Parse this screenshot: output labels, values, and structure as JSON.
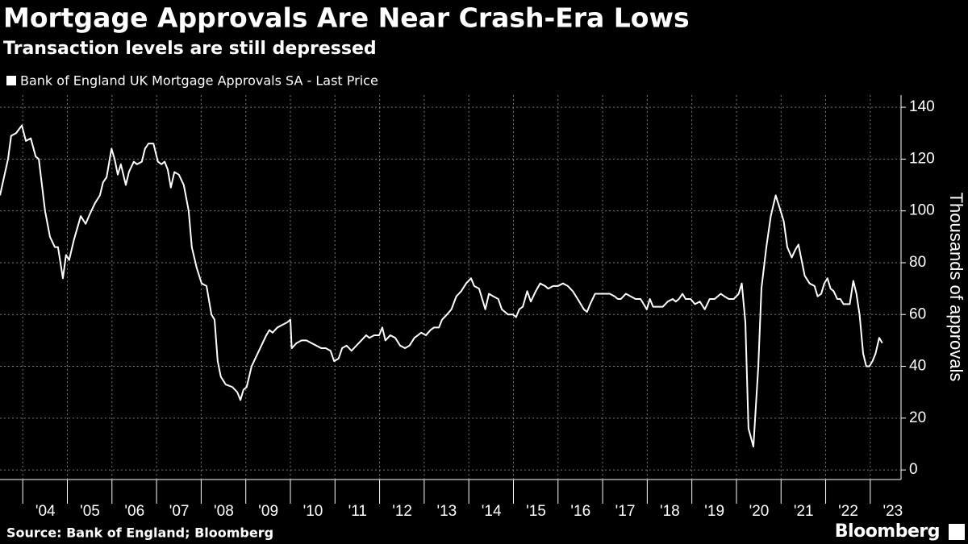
{
  "chart_data": {
    "type": "line",
    "title": "Mortgage Approvals Are Near Crash-Era Lows",
    "subtitle": "Transaction levels are still depressed",
    "y_label": "Thousands of approvals",
    "source": "Source: Bank of England; Bloomberg",
    "brand": "Bloomberg",
    "legend": "top-left",
    "grid": true,
    "xlim": [
      2003.49,
      2023.69
    ],
    "ylim": [
      -3.7,
      144.7
    ],
    "yticks": [
      0,
      20,
      40,
      60,
      80,
      100,
      120,
      140
    ],
    "xticks": [
      {
        "value": 2004,
        "label": "'04"
      },
      {
        "value": 2005,
        "label": "'05"
      },
      {
        "value": 2006,
        "label": "'06"
      },
      {
        "value": 2007,
        "label": "'07"
      },
      {
        "value": 2008,
        "label": "'08"
      },
      {
        "value": 2009,
        "label": "'09"
      },
      {
        "value": 2010,
        "label": "'10"
      },
      {
        "value": 2011,
        "label": "'11"
      },
      {
        "value": 2012,
        "label": "'12"
      },
      {
        "value": 2013,
        "label": "'13"
      },
      {
        "value": 2014,
        "label": "'14"
      },
      {
        "value": 2015,
        "label": "'15"
      },
      {
        "value": 2016,
        "label": "'16"
      },
      {
        "value": 2017,
        "label": "'17"
      },
      {
        "value": 2018,
        "label": "'18"
      },
      {
        "value": 2019,
        "label": "'19"
      },
      {
        "value": 2020,
        "label": "'20"
      },
      {
        "value": 2021,
        "label": "'21"
      },
      {
        "value": 2022,
        "label": "'22"
      },
      {
        "value": 2023,
        "label": "'23"
      }
    ],
    "series": [
      {
        "name": "Bank of England UK Mortgage Approvals SA - Last Price",
        "color": "#ffffff",
        "x": [
          2003.49,
          2003.67,
          2003.74,
          2003.85,
          2003.98,
          2004.07,
          2004.18,
          2004.29,
          2004.36,
          2004.43,
          2004.5,
          2004.61,
          2004.72,
          2004.79,
          2004.9,
          2004.97,
          2005.04,
          2005.15,
          2005.3,
          2005.41,
          2005.51,
          2005.62,
          2005.73,
          2005.8,
          2005.88,
          2005.99,
          2006.06,
          2006.13,
          2006.2,
          2006.31,
          2006.38,
          2006.49,
          2006.56,
          2006.67,
          2006.74,
          2006.82,
          2006.93,
          2007.03,
          2007.11,
          2007.18,
          2007.25,
          2007.32,
          2007.4,
          2007.5,
          2007.61,
          2007.72,
          2007.79,
          2007.9,
          2008.01,
          2008.12,
          2008.23,
          2008.3,
          2008.37,
          2008.44,
          2008.55,
          2008.7,
          2008.81,
          2008.88,
          2008.95,
          2009.02,
          2009.13,
          2009.24,
          2009.35,
          2009.46,
          2009.53,
          2009.6,
          2009.71,
          2009.82,
          2009.93,
          2010.0,
          2010.03,
          2010.14,
          2010.25,
          2010.36,
          2010.47,
          2010.58,
          2010.69,
          2010.79,
          2010.9,
          2010.98,
          2011.08,
          2011.16,
          2011.26,
          2011.37,
          2011.48,
          2011.59,
          2011.7,
          2011.77,
          2011.88,
          2011.99,
          2012.06,
          2012.13,
          2012.24,
          2012.35,
          2012.46,
          2012.57,
          2012.67,
          2012.78,
          2012.86,
          2012.93,
          2013.04,
          2013.14,
          2013.22,
          2013.33,
          2013.4,
          2013.51,
          2013.61,
          2013.72,
          2013.83,
          2013.94,
          2014.05,
          2014.12,
          2014.23,
          2014.3,
          2014.37,
          2014.45,
          2014.55,
          2014.66,
          2014.74,
          2014.81,
          2014.88,
          2014.99,
          2015.06,
          2015.13,
          2015.21,
          2015.31,
          2015.39,
          2015.5,
          2015.6,
          2015.71,
          2015.78,
          2015.89,
          2016.0,
          2016.11,
          2016.22,
          2016.33,
          2016.44,
          2016.51,
          2016.58,
          2016.65,
          2016.72,
          2016.83,
          2016.94,
          2017.05,
          2017.16,
          2017.27,
          2017.34,
          2017.41,
          2017.52,
          2017.63,
          2017.74,
          2017.85,
          2017.92,
          2017.99,
          2018.06,
          2018.13,
          2018.24,
          2018.35,
          2018.46,
          2018.57,
          2018.64,
          2018.71,
          2018.79,
          2018.86,
          2018.97,
          2019.07,
          2019.18,
          2019.29,
          2019.4,
          2019.51,
          2019.58,
          2019.65,
          2019.73,
          2019.83,
          2019.94,
          2020.05,
          2020.12,
          2020.2,
          2020.27,
          2020.38,
          2020.49,
          2020.56,
          2020.67,
          2020.77,
          2020.88,
          2020.99,
          2021.06,
          2021.14,
          2021.24,
          2021.32,
          2021.39,
          2021.46,
          2021.53,
          2021.64,
          2021.75,
          2021.82,
          2021.9,
          2021.97,
          2022.04,
          2022.11,
          2022.18,
          2022.26,
          2022.33,
          2022.4,
          2022.47,
          2022.54,
          2022.62,
          2022.69,
          2022.76,
          2022.84,
          2022.91,
          2022.98,
          2023.05,
          2023.12,
          2023.2,
          2023.27
        ],
        "values": [
          106,
          120,
          129,
          130,
          133,
          127,
          128,
          121,
          120,
          110,
          100,
          90,
          86,
          86,
          74,
          83,
          81,
          89,
          98,
          95,
          99,
          103,
          106,
          111,
          113,
          124,
          120,
          114,
          118,
          110,
          115,
          119,
          118,
          119,
          124,
          126,
          126,
          119,
          118,
          119,
          116,
          109,
          115,
          114,
          110,
          100,
          86,
          78,
          72,
          71,
          60,
          58,
          42,
          36,
          33,
          32,
          30,
          27,
          31,
          32,
          40,
          44,
          48,
          52,
          54,
          53,
          55,
          56,
          57,
          58,
          47,
          49,
          50,
          50,
          49,
          48,
          47,
          47,
          46,
          42,
          43,
          47,
          48,
          46,
          48,
          50,
          52,
          51,
          52,
          52,
          55,
          50,
          52,
          51,
          48,
          47,
          48,
          51,
          52,
          53,
          52,
          54,
          55,
          55,
          58,
          60,
          62,
          67,
          69,
          72,
          74,
          71,
          70,
          66,
          62,
          68,
          67,
          66,
          62,
          61,
          60,
          60,
          59,
          62,
          63,
          69,
          65,
          69,
          72,
          71,
          70,
          71,
          71,
          72,
          71,
          69,
          66,
          64,
          62,
          61,
          64,
          68,
          68,
          68,
          68,
          67,
          66,
          66,
          68,
          67,
          66,
          66,
          64,
          62,
          66,
          63,
          63,
          63,
          65,
          66,
          65,
          66,
          68,
          66,
          66,
          64,
          65,
          62,
          66,
          66,
          67,
          68,
          67,
          66,
          66,
          68,
          72,
          57,
          16,
          9,
          40,
          70,
          86,
          98,
          106,
          100,
          96,
          86,
          82,
          85,
          87,
          81,
          75,
          72,
          71,
          67,
          68,
          72,
          74,
          70,
          69,
          66,
          66,
          64,
          64,
          64,
          73,
          68,
          60,
          45,
          40,
          40,
          42,
          45,
          51,
          49
        ]
      }
    ]
  }
}
